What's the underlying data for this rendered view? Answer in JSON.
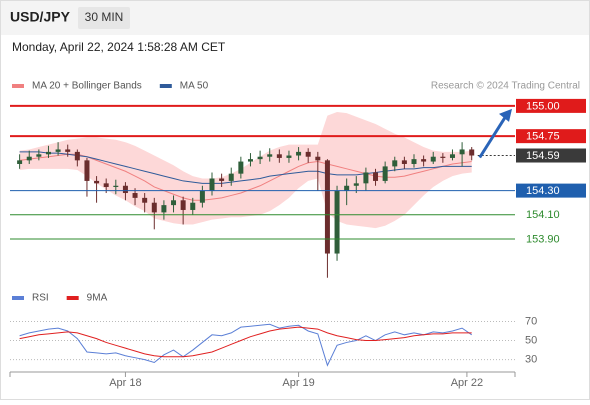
{
  "header": {
    "symbol": "USD/JPY",
    "interval": "30 MIN",
    "datetime": "Monday, April 22, 2024 1:58:28 AM CET"
  },
  "chart_data": [
    {
      "type": "candlestick",
      "source": "Research © 2024 Trading Central",
      "up_color": "#2f5e3a",
      "down_color": "#6b2d2d",
      "open": [
        154.52,
        154.55,
        154.58,
        154.6,
        154.62,
        154.64,
        154.62,
        154.55,
        154.38,
        154.36,
        154.33,
        154.34,
        154.28,
        154.24,
        154.2,
        154.12,
        154.18,
        154.22,
        154.14,
        154.2,
        154.3,
        154.4,
        154.38,
        154.44,
        154.54,
        154.56,
        154.58,
        154.6,
        154.57,
        154.59,
        154.62,
        154.58,
        154.55,
        153.78,
        154.3,
        154.34,
        154.36,
        154.45,
        154.38,
        154.5,
        154.55,
        154.52,
        154.56,
        154.54,
        154.58,
        154.57,
        154.6,
        154.64
      ],
      "high": [
        154.6,
        154.63,
        154.64,
        154.67,
        154.7,
        154.68,
        154.64,
        154.57,
        154.42,
        154.4,
        154.39,
        154.37,
        154.32,
        154.28,
        154.24,
        154.22,
        154.26,
        154.25,
        154.24,
        154.34,
        154.45,
        154.44,
        154.49,
        154.58,
        154.61,
        154.63,
        154.65,
        154.64,
        154.63,
        154.66,
        154.65,
        154.62,
        154.56,
        154.34,
        154.4,
        154.42,
        154.49,
        154.48,
        154.54,
        154.58,
        154.58,
        154.6,
        154.59,
        154.62,
        154.61,
        154.64,
        154.7,
        154.66
      ],
      "low": [
        154.48,
        154.52,
        154.55,
        154.57,
        154.59,
        154.58,
        154.5,
        154.25,
        154.2,
        154.28,
        154.27,
        154.22,
        154.18,
        154.12,
        153.98,
        154.06,
        154.12,
        154.02,
        154.1,
        154.16,
        154.26,
        154.33,
        154.34,
        154.4,
        154.5,
        154.52,
        154.54,
        154.53,
        154.53,
        154.55,
        154.53,
        154.3,
        153.58,
        153.72,
        154.18,
        154.28,
        154.3,
        154.34,
        154.36,
        154.46,
        154.48,
        154.49,
        154.5,
        154.52,
        154.53,
        154.55,
        154.5,
        154.55
      ],
      "close": [
        154.55,
        154.58,
        154.6,
        154.62,
        154.64,
        154.62,
        154.55,
        154.38,
        154.36,
        154.33,
        154.34,
        154.28,
        154.24,
        154.2,
        154.12,
        154.18,
        154.22,
        154.14,
        154.2,
        154.3,
        154.4,
        154.38,
        154.44,
        154.54,
        154.56,
        154.58,
        154.6,
        154.57,
        154.59,
        154.62,
        154.58,
        154.55,
        153.78,
        154.3,
        154.34,
        154.36,
        154.45,
        154.38,
        154.5,
        154.55,
        154.52,
        154.56,
        154.54,
        154.58,
        154.57,
        154.6,
        154.64,
        154.59
      ],
      "series": [
        {
          "name": "MA 20 + Bollinger Bands",
          "color": "#f08080",
          "band_color": "#fdd8d8",
          "values": [
            154.55,
            154.56,
            154.57,
            154.58,
            154.59,
            154.6,
            154.6,
            154.58,
            154.55,
            154.52,
            154.49,
            154.46,
            154.42,
            154.38,
            154.33,
            154.3,
            154.27,
            154.24,
            154.22,
            154.22,
            154.23,
            154.24,
            154.26,
            154.28,
            154.31,
            154.34,
            154.38,
            154.42,
            154.46,
            154.5,
            154.53,
            154.54,
            154.52,
            154.5,
            154.48,
            154.46,
            154.44,
            154.42,
            154.41,
            154.41,
            154.42,
            154.44,
            154.46,
            154.48,
            154.5,
            154.52,
            154.53,
            154.54
          ],
          "upper": [
            154.63,
            154.64,
            154.66,
            154.68,
            154.7,
            154.72,
            154.73,
            154.74,
            154.74,
            154.73,
            154.72,
            154.7,
            154.67,
            154.63,
            154.59,
            154.55,
            154.51,
            154.46,
            154.42,
            154.4,
            154.4,
            154.41,
            154.44,
            154.48,
            154.53,
            154.58,
            154.63,
            154.66,
            154.68,
            154.68,
            154.68,
            154.68,
            154.92,
            154.95,
            154.94,
            154.91,
            154.88,
            154.85,
            154.81,
            154.77,
            154.74,
            154.7,
            154.66,
            154.63,
            154.62,
            154.62,
            154.62,
            154.63
          ],
          "lower": [
            154.47,
            154.48,
            154.48,
            154.48,
            154.48,
            154.48,
            154.47,
            154.42,
            154.36,
            154.31,
            154.26,
            154.22,
            154.17,
            154.13,
            154.07,
            154.05,
            154.03,
            154.02,
            154.02,
            154.04,
            154.06,
            154.07,
            154.08,
            154.08,
            154.09,
            154.1,
            154.13,
            154.18,
            154.24,
            154.32,
            154.38,
            154.4,
            154.12,
            154.05,
            154.02,
            154.01,
            154.0,
            153.99,
            154.01,
            154.05,
            154.1,
            154.18,
            154.26,
            154.33,
            154.38,
            154.42,
            154.44,
            154.45
          ]
        },
        {
          "name": "MA 50",
          "color": "#2f5b9a",
          "values": [
            154.62,
            154.62,
            154.62,
            154.61,
            154.61,
            154.6,
            154.59,
            154.58,
            154.56,
            154.54,
            154.52,
            154.5,
            154.48,
            154.46,
            154.44,
            154.42,
            154.4,
            154.38,
            154.37,
            154.36,
            154.36,
            154.36,
            154.37,
            154.38,
            154.39,
            154.4,
            154.42,
            154.43,
            154.44,
            154.45,
            154.46,
            154.46,
            154.44,
            154.43,
            154.43,
            154.43,
            154.44,
            154.45,
            154.46,
            154.47,
            154.48,
            154.48,
            154.49,
            154.49,
            154.5,
            154.5,
            154.5,
            154.5
          ]
        }
      ],
      "levels": [
        {
          "value": 155.0,
          "label": "155.00",
          "color": "#e01b1b",
          "boxed": true,
          "line": "thick"
        },
        {
          "value": 154.75,
          "label": "154.75",
          "color": "#e01b1b",
          "boxed": true,
          "line": "thick"
        },
        {
          "value": 154.59,
          "label": "154.59",
          "color": "#3a3a3a",
          "boxed": true,
          "line": "dotted"
        },
        {
          "value": 154.3,
          "label": "154.30",
          "color": "#1f5fae",
          "boxed": true,
          "line": "thin"
        },
        {
          "value": 154.1,
          "label": "154.10",
          "color": "#2e8b2e",
          "boxed": false,
          "line": "thin"
        },
        {
          "value": 153.9,
          "label": "153.90",
          "color": "#2e8b2e",
          "boxed": false,
          "line": "thin"
        }
      ],
      "xlim": [
        -1,
        51.5
      ],
      "ylim": [
        153.52,
        155.09
      ]
    },
    {
      "type": "line",
      "series": [
        {
          "name": "RSI",
          "color": "#5b7fd6",
          "values": [
            55,
            58,
            60,
            62,
            63,
            60,
            52,
            38,
            37,
            36,
            37,
            34,
            32,
            30,
            27,
            35,
            40,
            33,
            40,
            48,
            56,
            55,
            58,
            64,
            65,
            66,
            67,
            63,
            65,
            66,
            60,
            57,
            24,
            45,
            48,
            50,
            55,
            50,
            56,
            59,
            56,
            58,
            56,
            59,
            58,
            60,
            63,
            56
          ]
        },
        {
          "name": "9MA",
          "color": "#e02020",
          "values": [
            52,
            54,
            56,
            57,
            58,
            59,
            58,
            55,
            52,
            48,
            45,
            42,
            39,
            36,
            34,
            33,
            33,
            33,
            34,
            36,
            38,
            42,
            46,
            50,
            54,
            57,
            60,
            62,
            63,
            64,
            63,
            62,
            58,
            55,
            53,
            51,
            50,
            50,
            51,
            52,
            53,
            55,
            56,
            57,
            57,
            58,
            58,
            58
          ]
        }
      ],
      "xlim": [
        -1,
        51.5
      ],
      "ylim": [
        17,
        82
      ],
      "yticks": [
        70,
        50,
        30
      ],
      "xticks": [
        {
          "value": 11,
          "label": "Apr 18"
        },
        {
          "value": 29,
          "label": "Apr 19"
        },
        {
          "value": 46.5,
          "label": "Apr 22"
        }
      ]
    }
  ]
}
